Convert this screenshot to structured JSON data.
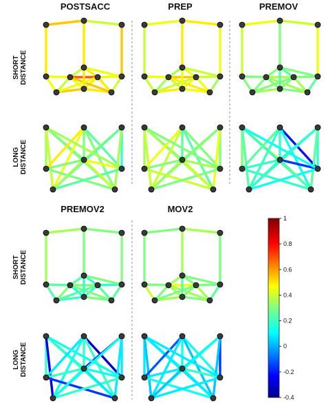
{
  "panels": [
    {
      "title": "POSTSACC",
      "short": [
        0.55,
        0.4,
        0.5,
        0.55,
        0.5,
        0.45,
        0.7,
        0.45,
        0.4,
        0.5,
        0.45,
        0.55,
        0.5,
        0.4,
        0.45,
        0.5,
        0.55,
        0.45,
        0.5,
        0.4,
        0.5,
        0.45
      ],
      "long": [
        0.35,
        0.3,
        0.4,
        0.3,
        0.5,
        0.25,
        0.45,
        0.3,
        0.2,
        0.4,
        0.25,
        0.35,
        0.3,
        0.45,
        0.3,
        0.25,
        0.35,
        0.4,
        0.3,
        0.35
      ]
    },
    {
      "title": "PREP",
      "short": [
        0.45,
        0.5,
        0.4,
        0.45,
        0.5,
        0.45,
        0.55,
        0.4,
        0.35,
        0.45,
        0.4,
        0.5,
        0.45,
        0.35,
        0.4,
        0.45,
        0.5,
        0.4,
        0.45,
        0.35,
        0.45,
        0.4
      ],
      "long": [
        0.35,
        0.3,
        0.4,
        0.35,
        0.45,
        0.3,
        0.4,
        0.25,
        0.3,
        0.35,
        0.3,
        0.45,
        0.3,
        0.35,
        0.4,
        0.3,
        0.35,
        0.4,
        0.25,
        0.3
      ]
    },
    {
      "title": "PREMOV",
      "short": [
        0.45,
        0.4,
        0.4,
        0.45,
        0.3,
        0.3,
        0.35,
        0.3,
        0.3,
        0.25,
        0.3,
        0.35,
        0.3,
        0.25,
        0.3,
        0.3,
        0.35,
        0.3,
        0.25,
        0.3,
        0.35,
        0.3
      ],
      "long": [
        0.3,
        0.4,
        0.25,
        0.2,
        0.25,
        -0.2,
        0.2,
        0.15,
        0.2,
        0.15,
        0.2,
        0.25,
        0.2,
        -0.15,
        0.2,
        0.15,
        0.2,
        0.25,
        0.2,
        0.15
      ]
    },
    {
      "title": "PREMOV2",
      "short": [
        0.35,
        0.3,
        0.35,
        0.3,
        0.3,
        0.25,
        0.3,
        0.2,
        0.25,
        0.2,
        0.25,
        0.2,
        0.3,
        0.25,
        0.15,
        0.2,
        0.3,
        0.25,
        0.2,
        0.3,
        0.25,
        0.3
      ],
      "long": [
        0.2,
        0.15,
        -0.25,
        0.2,
        0.1,
        -0.3,
        0.15,
        0.2,
        0.1,
        -0.2,
        0.15,
        0.1,
        0.2,
        0.15,
        -0.15,
        0.2,
        0.15,
        0.1,
        0.2,
        0.15
      ]
    },
    {
      "title": "MOV2",
      "short": [
        0.3,
        0.35,
        0.3,
        0.3,
        0.35,
        0.3,
        0.45,
        0.3,
        0.35,
        0.3,
        0.4,
        0.35,
        0.3,
        0.25,
        0.35,
        0.3,
        0.35,
        0.3,
        0.25,
        0.3,
        0.35,
        0.3
      ],
      "long": [
        0.1,
        0.15,
        0.05,
        0.1,
        -0.1,
        0.15,
        0.1,
        0.05,
        -0.15,
        0.1,
        0.15,
        0.05,
        0.1,
        0.2,
        0.15,
        0.1,
        0.05,
        0.1,
        0.15,
        0.1
      ]
    }
  ],
  "row_labels": {
    "short": "SHORT DISTANCE",
    "long": "LONG DISTANCE"
  },
  "colorbar": {
    "ticks": [
      "1",
      "0.8",
      "0.6",
      "0.4",
      "0.2",
      "0",
      "-0.2",
      "-0.4"
    ],
    "range": [
      -0.4,
      1.0
    ]
  }
}
